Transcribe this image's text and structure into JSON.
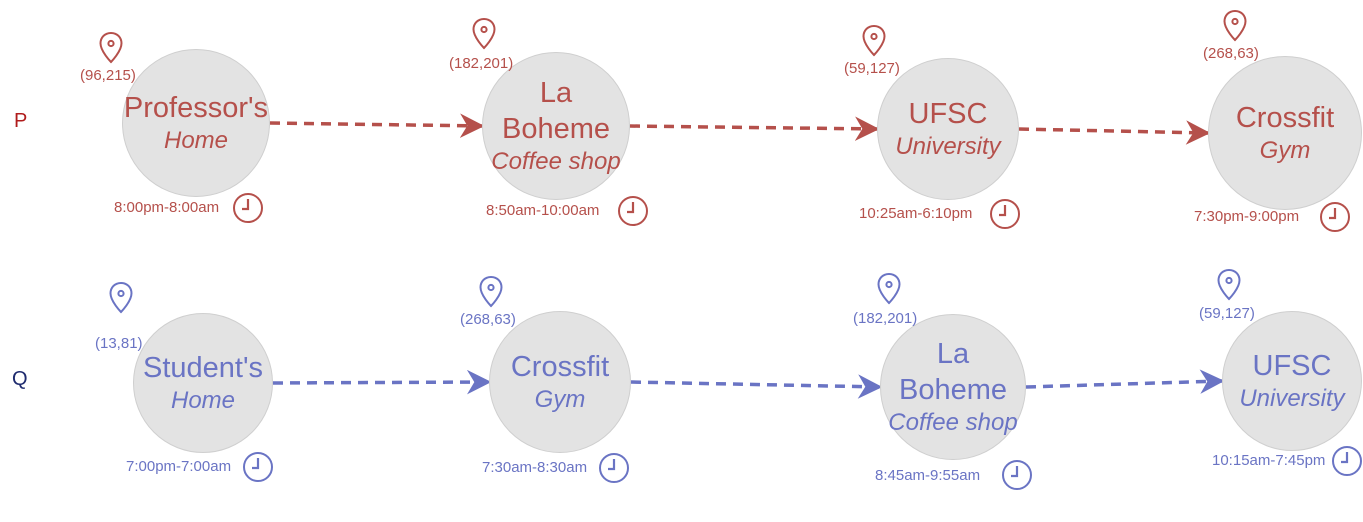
{
  "rows": [
    {
      "label": "P",
      "color": "#b5504b",
      "stops": [
        {
          "name": [
            "Professor's"
          ],
          "type": "Home",
          "coord": "(96,215)",
          "time": "8:00pm-8:00am"
        },
        {
          "name": [
            "La",
            "Boheme"
          ],
          "type": "Coffee shop",
          "coord": "(182,201)",
          "time": "8:50am-10:00am"
        },
        {
          "name": [
            "UFSC"
          ],
          "type": "University",
          "coord": "(59,127)",
          "time": "10:25am-6:10pm"
        },
        {
          "name": [
            "Crossfit"
          ],
          "type": "Gym",
          "coord": "(268,63)",
          "time": "7:30pm-9:00pm"
        }
      ]
    },
    {
      "label": "Q",
      "color": "#6a74c4",
      "stops": [
        {
          "name": [
            "Student's"
          ],
          "type": "Home",
          "coord": "(13,81)",
          "time": "7:00pm-7:00am"
        },
        {
          "name": [
            "Crossfit"
          ],
          "type": "Gym",
          "coord": "(268,63)",
          "time": "7:30am-8:30am"
        },
        {
          "name": [
            "La",
            "Boheme"
          ],
          "type": "Coffee shop",
          "coord": "(182,201)",
          "time": "8:45am-9:55am"
        },
        {
          "name": [
            "UFSC"
          ],
          "type": "University",
          "coord": "(59,127)",
          "time": "10:15am-7:45pm"
        }
      ]
    }
  ],
  "label_colors": {
    "P": "#b01c1c",
    "Q": "#1e2a6e"
  },
  "icons": {
    "location": "map-pin-icon",
    "time": "clock-icon"
  }
}
